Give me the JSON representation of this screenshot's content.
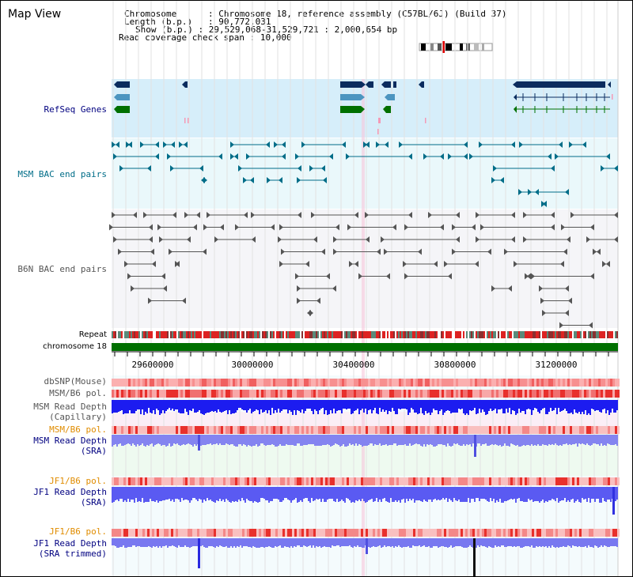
{
  "window": {
    "title": "Map View"
  },
  "info": {
    "chromosome_key": "Chromosome",
    "chromosome_value": "Chromosome 18, reference assembly (C57BL/6J) (Build 37)",
    "length_key": "Length (b.p.)",
    "length_value": "90,772,031",
    "show_key": "Show (b.p.)",
    "show_value": "29,529,068-31,529,721 : 2,000,654 bp",
    "span_key": "Read coverage check span",
    "span_value": "10,000"
  },
  "tracks": {
    "refseq": "RefSeq Genes",
    "msm_bac": "MSM BAC end pairs",
    "b6n_bac": "B6N BAC end pairs",
    "repeat": "Repeat",
    "chromosome": "chromosome 18",
    "dbsnp": "dbSNP(Mouse)",
    "msm_b6_pol": "MSM/B6 pol.",
    "msm_depth_cap_1": "MSM Read Depth",
    "msm_depth_cap_2": "(Capillary)",
    "msm_b6_pol_2": "MSM/B6 pol.",
    "msm_depth_sra_1": "MSM Read Depth",
    "msm_depth_sra_2": "(SRA)",
    "jf1_b6_pol": "JF1/B6 pol.",
    "jf1_depth_sra_1": "JF1 Read Depth",
    "jf1_depth_sra_2": "(SRA)",
    "jf1_b6_pol_2": "JF1/B6 pol.",
    "jf1_depth_trim_1": "JF1 Read Depth",
    "jf1_depth_trim_2": "(SRA trimmed)"
  },
  "axis": {
    "ticks": [
      "29600000",
      "30000000",
      "30400000",
      "30800000",
      "31200000"
    ]
  },
  "colors": {
    "refseq_bg": "#d6eefa",
    "bac_bg": "#eaf8fb",
    "b6n_bg": "#f5f5f8",
    "chromosome_bar": "#007000",
    "gene_dark": "#0b2c5e",
    "gene_mid": "#4c95c0",
    "gene_green": "#007000",
    "bac_msm": "#006d88",
    "bac_b6n": "#555555",
    "depth_blue": "#1c1cf0",
    "depth_light": "#7c7cf0",
    "pol_red": "#e8302c"
  }
}
